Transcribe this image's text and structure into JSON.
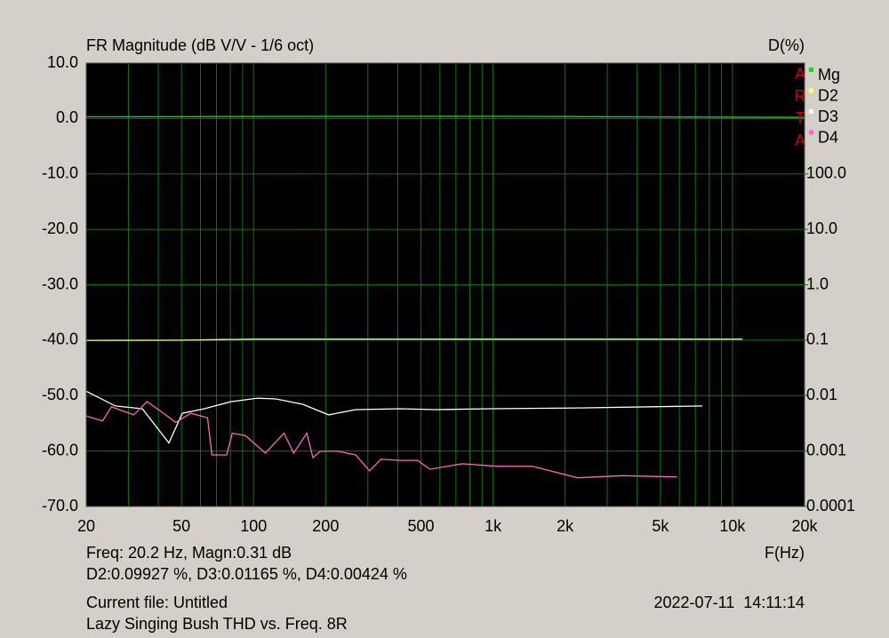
{
  "chart_data": {
    "type": "line",
    "title": "FR Magnitude (dB V/V - 1/6 oct)",
    "y2_label": "D(%)",
    "x_label": "F(Hz)",
    "watermark": "ARTA",
    "xlim": [
      20,
      20000
    ],
    "x_log": true,
    "xticks": [
      20,
      50,
      100,
      200,
      500,
      {
        "value": 1000,
        "label": "1k"
      },
      {
        "value": 2000,
        "label": "2k"
      },
      {
        "value": 5000,
        "label": "5k"
      },
      {
        "value": 10000,
        "label": "10k"
      },
      {
        "value": 20000,
        "label": "20k"
      }
    ],
    "xgrid": [
      20,
      30,
      40,
      50,
      60,
      70,
      80,
      90,
      100,
      200,
      300,
      400,
      500,
      600,
      700,
      800,
      900,
      1000,
      2000,
      3000,
      4000,
      5000,
      6000,
      7000,
      8000,
      9000,
      10000,
      20000
    ],
    "ylim": [
      -70,
      10
    ],
    "yticks": [
      {
        "value": 10,
        "label": "10.0"
      },
      {
        "value": 0,
        "label": "0.0"
      },
      {
        "value": -10,
        "label": "-10.0"
      },
      {
        "value": -20,
        "label": "-20.0"
      },
      {
        "value": -30,
        "label": "-30.0"
      },
      {
        "value": -40,
        "label": "-40.0"
      },
      {
        "value": -50,
        "label": "-50.0"
      },
      {
        "value": -60,
        "label": "-60.0"
      },
      {
        "value": -70,
        "label": "-70.0"
      }
    ],
    "y2lim": [
      0.0001,
      10000
    ],
    "y2_log": true,
    "y2ticks": [
      {
        "value": 100,
        "label": "100.0"
      },
      {
        "value": 10,
        "label": "10.0"
      },
      {
        "value": 1,
        "label": "1.0"
      },
      0.1,
      0.01,
      0.001,
      0.0001
    ],
    "grid": true,
    "grid_color": "#0b7a0b",
    "background": "#000000",
    "legend": "upper right",
    "series": [
      {
        "name": "Mg",
        "color": "#22d022",
        "x": [
          20,
          500,
          1000,
          2000,
          20000
        ],
        "values": [
          0.31,
          0.4,
          0.4,
          0.35,
          0.2
        ]
      },
      {
        "name": "D2",
        "color": "#ffff80",
        "axis": "y2",
        "x": [
          20,
          50,
          100,
          1000,
          11000
        ],
        "values": [
          0.099,
          0.1,
          0.105,
          0.105,
          0.105
        ]
      },
      {
        "name": "D3",
        "color": "#ffffff",
        "axis": "y2",
        "x": [
          20,
          26.5,
          34.3,
          44.3,
          50.4,
          62.3,
          80.6,
          104,
          124,
          160,
          206,
          267,
          409,
          576,
          962,
          2260,
          7480
        ],
        "values": [
          0.012,
          0.0065,
          0.0058,
          0.0014,
          0.0048,
          0.0058,
          0.0078,
          0.009,
          0.0087,
          0.007,
          0.0045,
          0.0056,
          0.0058,
          0.0056,
          0.0058,
          0.006,
          0.0065
        ]
      },
      {
        "name": "D4",
        "color": "#ff66c4",
        "axis": "y2",
        "x": [
          20,
          23.4,
          25.5,
          31.6,
          35.9,
          40.5,
          47.3,
          54.7,
          64.2,
          67,
          77.2,
          81.5,
          92.5,
          112,
          134,
          147,
          167,
          177,
          190,
          223,
          267,
          305,
          340,
          409,
          484,
          546,
          743,
          1045,
          1460,
          2260,
          3480,
          5870
        ],
        "values": [
          0.0043,
          0.0035,
          0.0063,
          0.0045,
          0.0078,
          0.0054,
          0.0033,
          0.0048,
          0.004,
          0.00085,
          0.00085,
          0.0021,
          0.0019,
          0.00092,
          0.0021,
          0.00092,
          0.0021,
          0.00076,
          0.00099,
          0.001,
          0.00085,
          0.00044,
          0.00071,
          0.00068,
          0.00068,
          0.00047,
          0.00059,
          0.00053,
          0.00053,
          0.00033,
          0.00036,
          0.00034
        ]
      }
    ]
  },
  "info": {
    "cursor": "Freq: 20.2 Hz, Magn:0.31 dB",
    "distortion": "D2:0.09927 %, D3:0.01165 %, D4:0.00424 %",
    "file": "Current file: Untitled",
    "timestamp": "2022-07-11  14:11:14",
    "description": "Lazy Singing Bush THD vs. Freq. 8R"
  }
}
